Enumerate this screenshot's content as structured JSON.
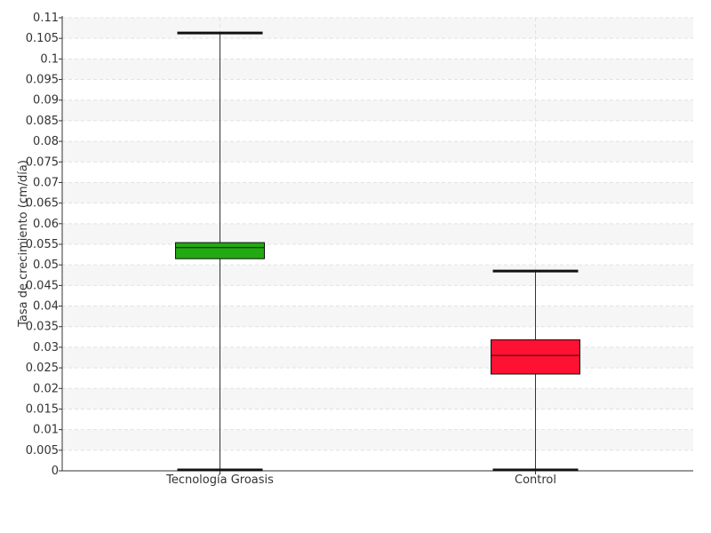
{
  "chart_data": {
    "type": "boxplot",
    "ylabel": "Tasa de crecimiento (cm/día)",
    "ylim": [
      0,
      0.11
    ],
    "yticks": [
      "0",
      "0.005",
      "0.01",
      "0.015",
      "0.02",
      "0.025",
      "0.03",
      "0.035",
      "0.04",
      "0.045",
      "0.05",
      "0.055",
      "0.06",
      "0.065",
      "0.07",
      "0.075",
      "0.08",
      "0.085",
      "0.09",
      "0.095",
      "0.1",
      "0.105",
      "0.11"
    ],
    "grid": true,
    "categories": [
      "Tecnología Groasis",
      "Control"
    ],
    "boxes": [
      {
        "category": "Tecnología Groasis",
        "min": 0,
        "q1": 0.0515,
        "median": 0.0542,
        "q3": 0.0554,
        "max": 0.1063,
        "color": "#22aa11"
      },
      {
        "category": "Control",
        "min": 0,
        "q1": 0.0235,
        "median": 0.028,
        "q3": 0.0318,
        "max": 0.0485,
        "color": "#ff1133"
      }
    ]
  }
}
